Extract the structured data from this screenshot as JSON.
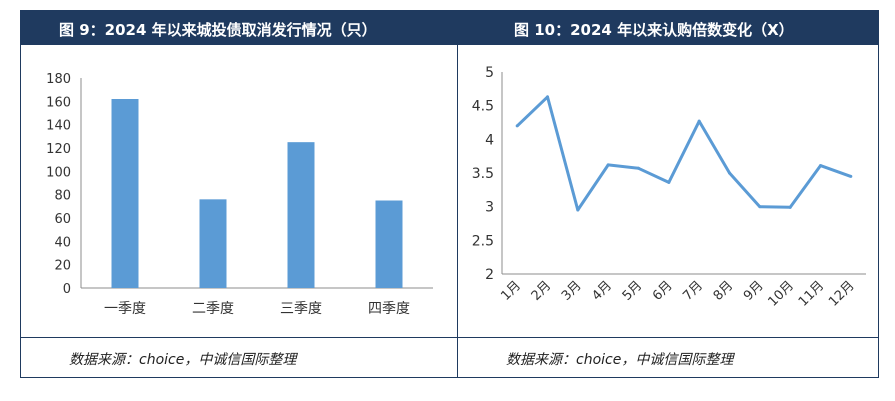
{
  "panels": {
    "left": {
      "title": "图 9：2024 年以来城投债取消发行情况（只）",
      "source": "数据来源：choice，中诚信国际整理"
    },
    "right": {
      "title": "图 10：2024 年以来认购倍数变化（X）",
      "source": "数据来源：choice，中诚信国际整理"
    }
  },
  "colors": {
    "header": "#1f3a5f",
    "series": "#5b9bd5"
  },
  "chart_data": [
    {
      "type": "bar",
      "title": "图 9：2024 年以来城投债取消发行情况（只）",
      "categories": [
        "一季度",
        "二季度",
        "三季度",
        "四季度"
      ],
      "values": [
        162,
        76,
        125,
        75
      ],
      "ylim": [
        0,
        180
      ],
      "yticks": [
        0,
        20,
        40,
        60,
        80,
        100,
        120,
        140,
        160,
        180
      ],
      "grid": false
    },
    {
      "type": "line",
      "title": "图 10：2024 年以来认购倍数变化（X）",
      "x": [
        "1月",
        "2月",
        "3月",
        "4月",
        "5月",
        "6月",
        "7月",
        "8月",
        "9月",
        "10月",
        "11月",
        "12月"
      ],
      "values": [
        4.2,
        4.63,
        2.95,
        3.62,
        3.57,
        3.36,
        4.27,
        3.5,
        3.0,
        2.99,
        3.61,
        3.45
      ],
      "ylim": [
        2,
        5
      ],
      "yticks": [
        2,
        2.5,
        3,
        3.5,
        4,
        4.5,
        5
      ],
      "grid": false
    }
  ]
}
